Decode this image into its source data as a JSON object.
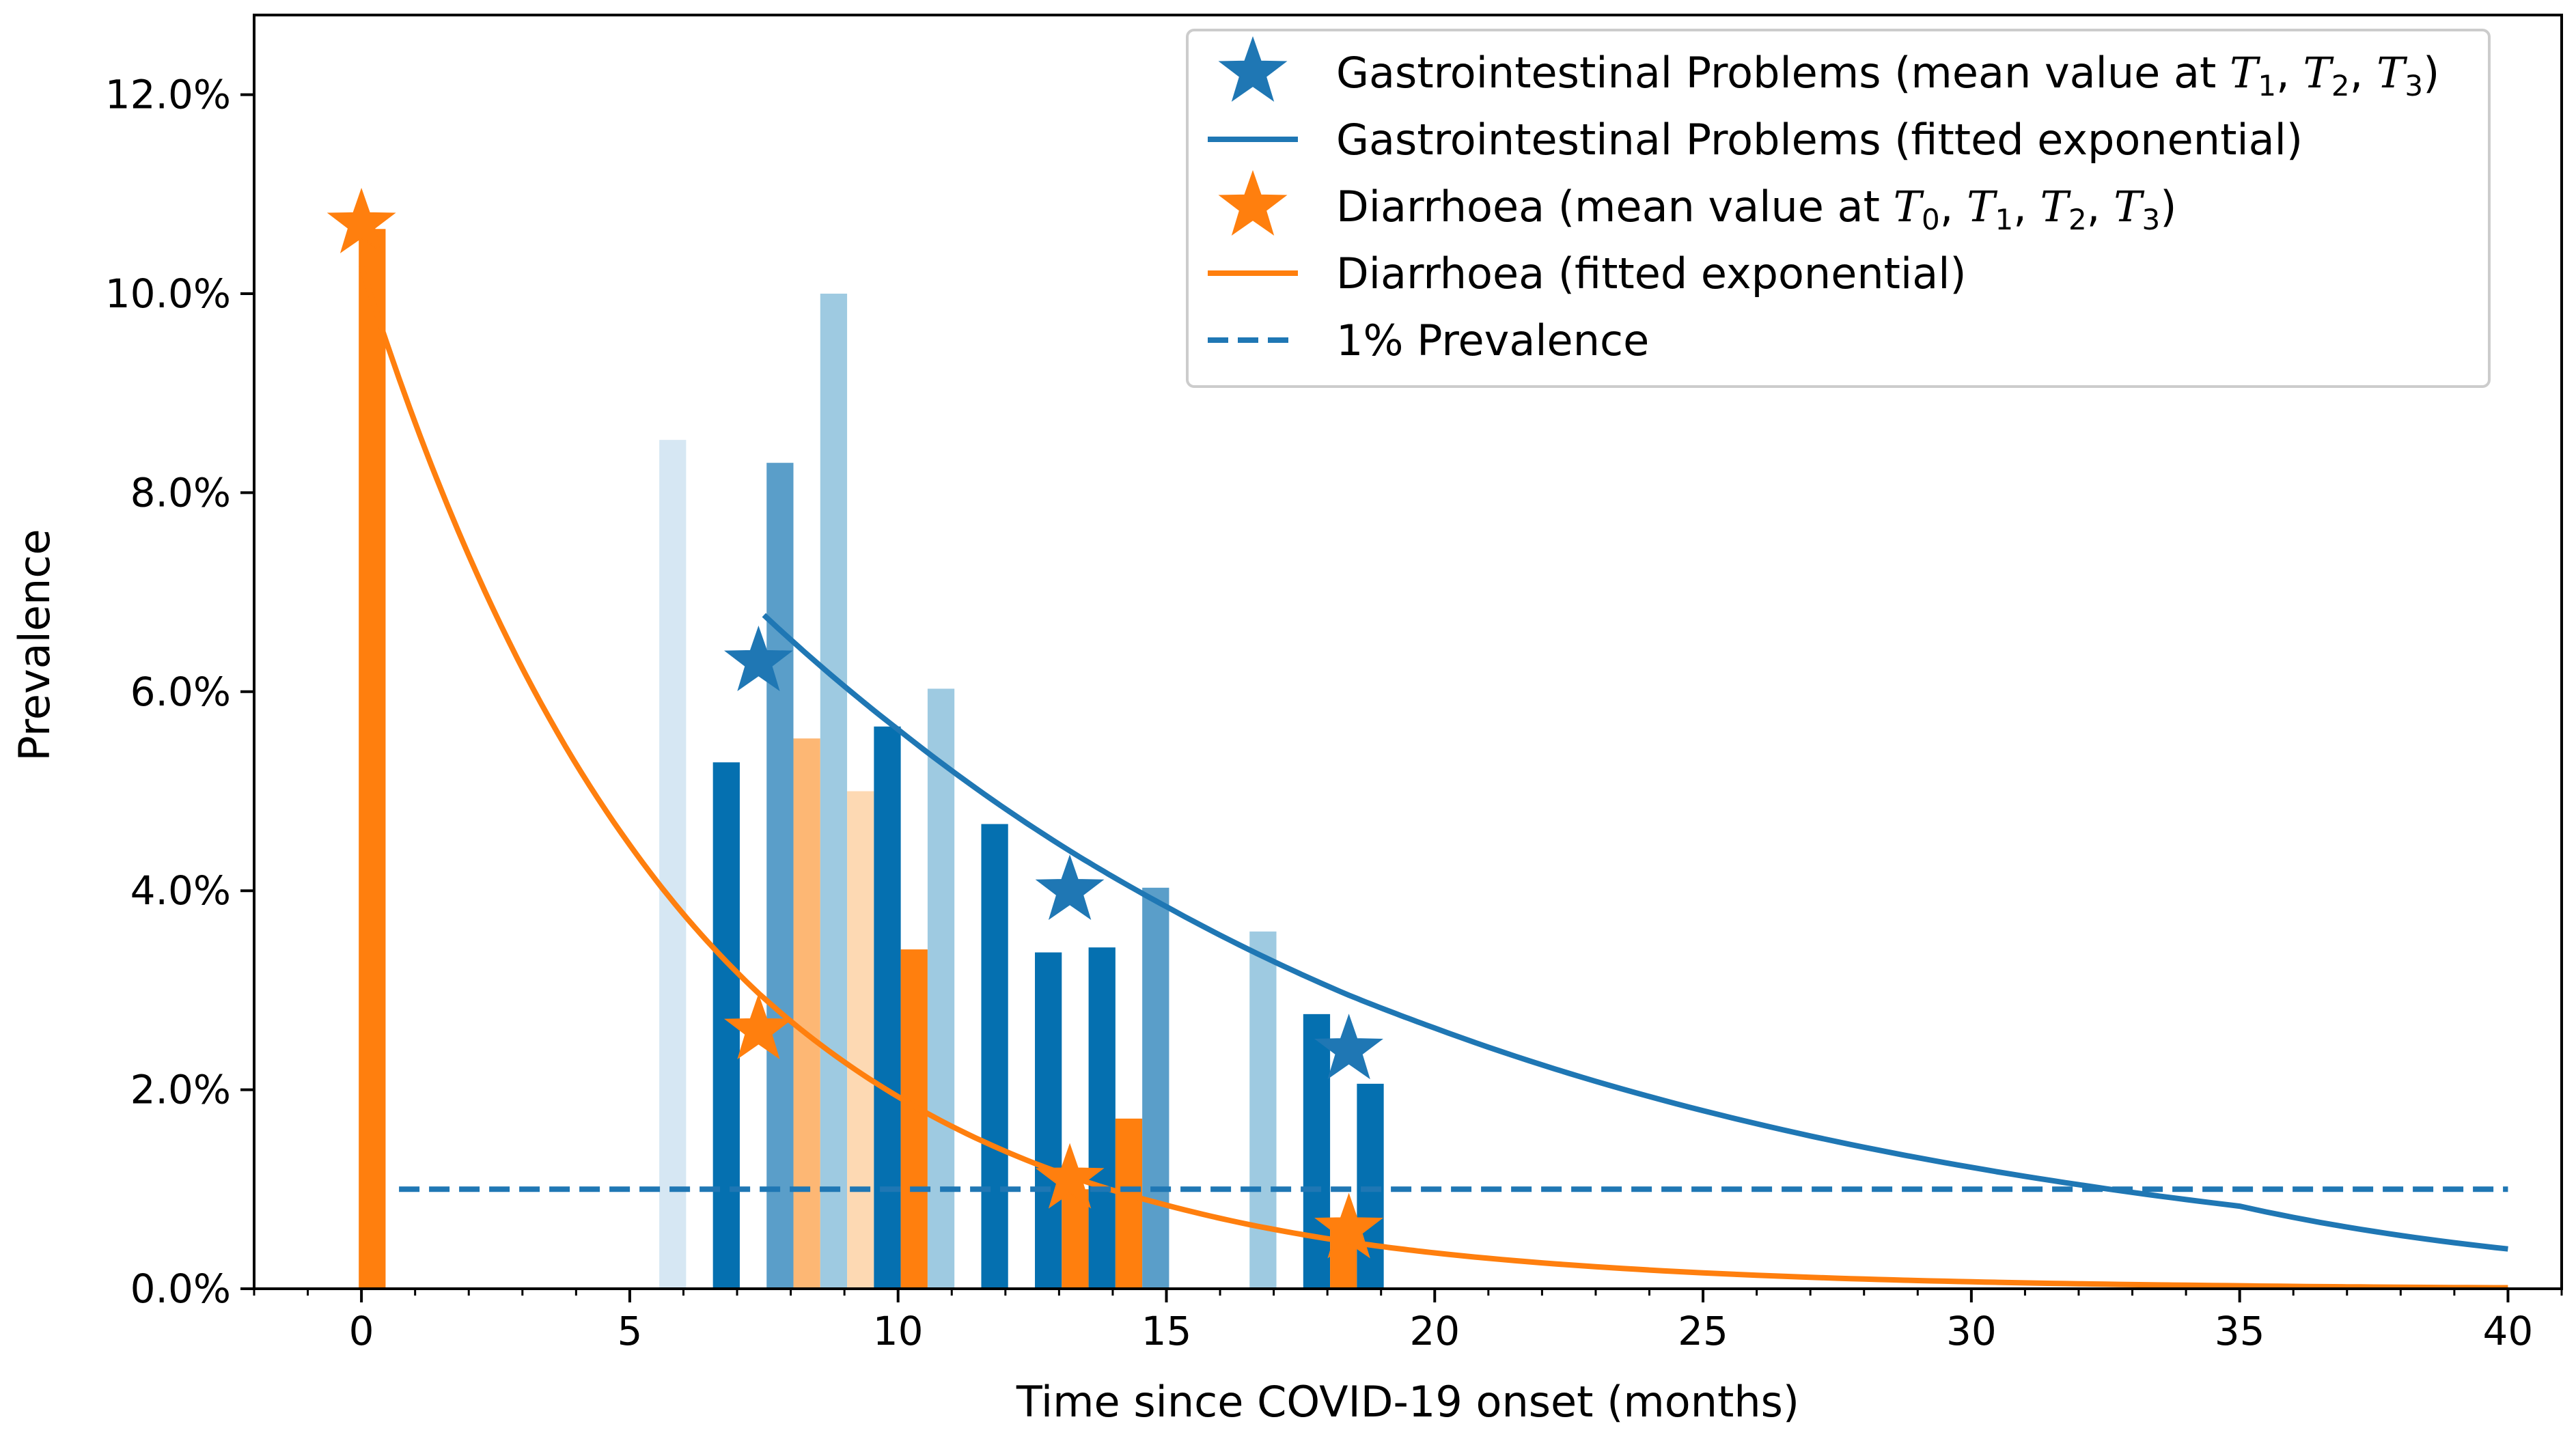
{
  "colors": {
    "blue": "#1f77b4",
    "blue_dark": "#0570b0",
    "blue_mid": "#5a9ec9",
    "blue_light": "#9ecae1",
    "blue_pale": "#d6e7f3",
    "orange": "#ff7f0e",
    "orange_light": "#fdb774",
    "orange_pale": "#fdd9b3",
    "legend_border": "#cccccc"
  },
  "chart_data": {
    "type": "bar",
    "xlabel": "Time since COVID-19 onset (months)",
    "ylabel": "Prevalence",
    "xlim": [
      -2,
      41
    ],
    "ylim": [
      0,
      0.128
    ],
    "x_ticks": [
      0,
      5,
      10,
      15,
      20,
      25,
      30,
      35,
      40
    ],
    "x_minor_step": 1,
    "y_ticks": [
      0,
      0.02,
      0.04,
      0.06,
      0.08,
      0.1,
      0.12
    ],
    "y_tick_labels": [
      "0.0%",
      "2.0%",
      "4.0%",
      "6.0%",
      "8.0%",
      "10.0%",
      "12.0%"
    ],
    "x_tick_labels": [
      "0",
      "5",
      "10",
      "15",
      "20",
      "25",
      "30",
      "35",
      "40"
    ],
    "bar_width_months": 0.5,
    "bars": [
      {
        "x": 0.2,
        "value": 0.1065,
        "shade": "orange"
      },
      {
        "x": 5.8,
        "value": 0.0853,
        "shade": "blue_pale"
      },
      {
        "x": 6.8,
        "value": 0.0529,
        "shade": "blue_dark"
      },
      {
        "x": 7.8,
        "value": 0.083,
        "shade": "blue_mid"
      },
      {
        "x": 8.3,
        "value": 0.0553,
        "shade": "orange_light"
      },
      {
        "x": 8.8,
        "value": 0.1,
        "shade": "blue_light"
      },
      {
        "x": 9.3,
        "value": 0.05,
        "shade": "orange_pale"
      },
      {
        "x": 9.8,
        "value": 0.0565,
        "shade": "blue_dark"
      },
      {
        "x": 10.3,
        "value": 0.0341,
        "shade": "orange"
      },
      {
        "x": 10.8,
        "value": 0.0603,
        "shade": "blue_light"
      },
      {
        "x": 11.8,
        "value": 0.0467,
        "shade": "blue_dark"
      },
      {
        "x": 12.8,
        "value": 0.0338,
        "shade": "blue_dark"
      },
      {
        "x": 13.3,
        "value": 0.01,
        "shade": "orange"
      },
      {
        "x": 13.8,
        "value": 0.0343,
        "shade": "blue_dark"
      },
      {
        "x": 14.3,
        "value": 0.0171,
        "shade": "orange"
      },
      {
        "x": 14.8,
        "value": 0.0403,
        "shade": "blue_mid"
      },
      {
        "x": 16.8,
        "value": 0.0359,
        "shade": "blue_light"
      },
      {
        "x": 17.8,
        "value": 0.0276,
        "shade": "blue_dark"
      },
      {
        "x": 18.3,
        "value": 0.006,
        "shade": "orange"
      },
      {
        "x": 18.8,
        "value": 0.0206,
        "shade": "blue_dark"
      }
    ],
    "series": [
      {
        "name": "Gastrointestinal Problems (mean value at T1, T2, T3)",
        "kind": "stars",
        "color": "#1f77b4",
        "points": [
          [
            7.4,
            0.063
          ],
          [
            13.2,
            0.04
          ],
          [
            18.4,
            0.024
          ]
        ]
      },
      {
        "name": "Gastrointestinal Problems (fitted exponential)",
        "kind": "line",
        "color": "#1f77b4",
        "points": [
          [
            7.5,
            0.0677
          ],
          [
            10,
            0.0562
          ],
          [
            13.2,
            0.044
          ],
          [
            15,
            0.0384
          ],
          [
            18.4,
            0.0295
          ],
          [
            20,
            0.0262
          ],
          [
            25,
            0.0179
          ],
          [
            30,
            0.0122
          ],
          [
            35,
            0.0083
          ],
          [
            40,
            0.004
          ]
        ]
      },
      {
        "name": "Diarrhoea (mean value at T0, T1, T2, T3)",
        "kind": "stars",
        "color": "#ff7f0e",
        "points": [
          [
            0.0,
            0.107
          ],
          [
            7.4,
            0.026
          ],
          [
            13.2,
            0.011
          ],
          [
            18.4,
            0.006
          ]
        ]
      },
      {
        "name": "Diarrhoea (fitted exponential)",
        "kind": "line",
        "color": "#ff7f0e",
        "points": [
          [
            0.0,
            0.1028
          ],
          [
            2,
            0.0737
          ],
          [
            5,
            0.0446
          ],
          [
            7.4,
            0.0297
          ],
          [
            10,
            0.0193
          ],
          [
            13.2,
            0.0113
          ],
          [
            15,
            0.0084
          ],
          [
            18.4,
            0.0047
          ],
          [
            20,
            0.0036
          ],
          [
            25,
            0.0016
          ],
          [
            30,
            0.0007
          ],
          [
            35,
            0.0003
          ],
          [
            40,
            0.0001
          ]
        ]
      },
      {
        "name": "1% Prevalence",
        "kind": "dashed",
        "color": "#1f77b4",
        "points": [
          [
            0.7,
            0.01
          ],
          [
            40,
            0.01
          ]
        ]
      }
    ],
    "legend": {
      "placement": "top-right",
      "entries": [
        {
          "marker": "star",
          "color": "#1f77b4",
          "label_main": "Gastrointestinal Problems (mean value at ",
          "vars": [
            "0",
            "1",
            "2",
            "3"
          ],
          "var_indices": [
            "1",
            "2",
            "3"
          ],
          "label_end": ")"
        },
        {
          "marker": "line",
          "color": "#1f77b4",
          "label": "Gastrointestinal Problems (fitted exponential)"
        },
        {
          "marker": "star",
          "color": "#ff7f0e",
          "label_main": "Diarrhoea (mean value at ",
          "var_indices": [
            "0",
            "1",
            "2",
            "3"
          ],
          "label_end": ")"
        },
        {
          "marker": "line",
          "color": "#ff7f0e",
          "label": "Diarrhoea (fitted exponential)"
        },
        {
          "marker": "dashed",
          "color": "#1f77b4",
          "label": "1% Prevalence"
        }
      ],
      "var_letter": "T"
    }
  }
}
